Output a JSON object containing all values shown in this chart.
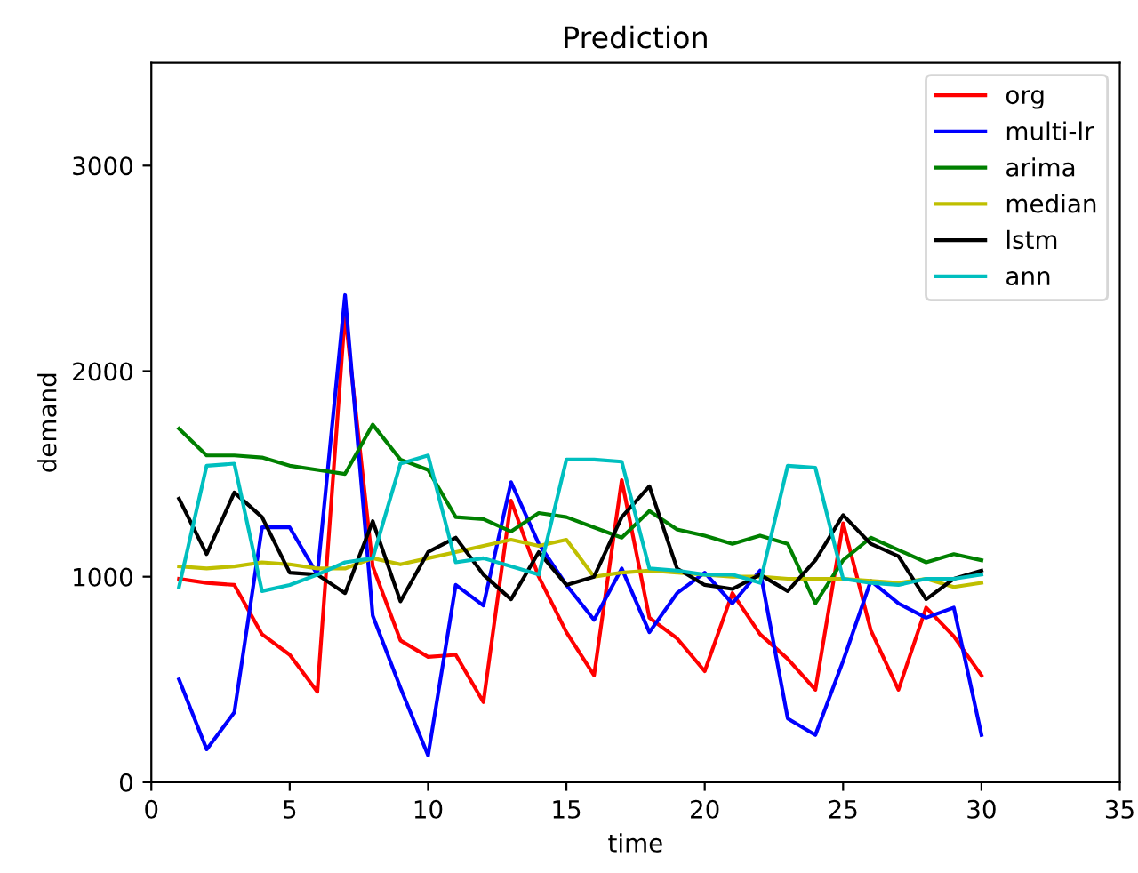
{
  "chart_data": {
    "type": "line",
    "title": "Prediction",
    "xlabel": "time",
    "ylabel": "demand",
    "x": [
      1,
      2,
      3,
      4,
      5,
      6,
      7,
      8,
      9,
      10,
      11,
      12,
      13,
      14,
      15,
      16,
      17,
      18,
      19,
      20,
      21,
      22,
      23,
      24,
      25,
      26,
      27,
      28,
      29,
      30
    ],
    "series": [
      {
        "name": "org",
        "color": "#ff0000",
        "values": [
          990,
          970,
          960,
          720,
          620,
          440,
          2280,
          1050,
          690,
          610,
          620,
          390,
          1370,
          1000,
          730,
          520,
          1470,
          800,
          700,
          540,
          920,
          720,
          600,
          450,
          1260,
          740,
          450,
          850,
          710,
          520
        ]
      },
      {
        "name": "multi-lr",
        "color": "#0000ff",
        "values": [
          500,
          160,
          340,
          1240,
          1240,
          1010,
          2370,
          810,
          460,
          130,
          960,
          860,
          1460,
          1160,
          960,
          790,
          1040,
          730,
          920,
          1020,
          870,
          1030,
          310,
          230,
          590,
          980,
          870,
          800,
          850,
          230
        ]
      },
      {
        "name": "arima",
        "color": "#008000",
        "values": [
          1720,
          1590,
          1590,
          1580,
          1540,
          1520,
          1500,
          1740,
          1570,
          1520,
          1290,
          1280,
          1220,
          1310,
          1290,
          1240,
          1190,
          1320,
          1230,
          1200,
          1160,
          1200,
          1160,
          870,
          1080,
          1190,
          1130,
          1070,
          1110,
          1080
        ]
      },
      {
        "name": "median",
        "color": "#bfbf00",
        "values": [
          1050,
          1040,
          1050,
          1070,
          1060,
          1040,
          1040,
          1090,
          1060,
          1090,
          1120,
          1150,
          1180,
          1150,
          1180,
          1000,
          1020,
          1030,
          1020,
          1010,
          1000,
          1000,
          990,
          990,
          990,
          980,
          970,
          990,
          950,
          970
        ]
      },
      {
        "name": "lstm",
        "color": "#000000",
        "values": [
          1380,
          1110,
          1410,
          1290,
          1020,
          1010,
          920,
          1270,
          880,
          1120,
          1190,
          1010,
          890,
          1120,
          960,
          1000,
          1290,
          1440,
          1040,
          960,
          940,
          1010,
          930,
          1080,
          1300,
          1160,
          1100,
          890,
          990,
          1030
        ]
      },
      {
        "name": "ann",
        "color": "#00bfbf",
        "values": [
          950,
          1540,
          1550,
          930,
          960,
          1010,
          1070,
          1090,
          1550,
          1590,
          1070,
          1090,
          1050,
          1010,
          1570,
          1570,
          1560,
          1040,
          1030,
          1010,
          1010,
          970,
          1540,
          1530,
          990,
          970,
          960,
          990,
          990,
          1010
        ]
      }
    ],
    "xlim": [
      0,
      35
    ],
    "xticks": [
      0,
      5,
      10,
      15,
      20,
      25,
      30,
      35
    ],
    "ylim": [
      0,
      3500
    ],
    "yticks": [
      0,
      1000,
      2000,
      3000
    ],
    "grid": false,
    "legend": "top right",
    "marker": "none",
    "line_style": "solid"
  }
}
